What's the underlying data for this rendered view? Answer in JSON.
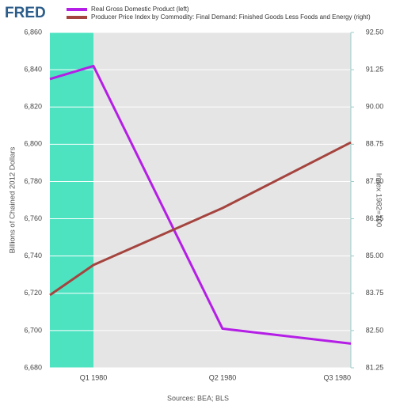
{
  "logo": "FRED",
  "chart_data": {
    "type": "line",
    "categories": [
      null,
      "Q1 1980",
      "Q2 1980",
      "Q3 1980"
    ],
    "series": [
      {
        "name": "Real Gross Domestic Product (left)",
        "color": "#b41ee6",
        "values": [
          6835,
          6842,
          6701,
          6693
        ]
      },
      {
        "name": "Producer Price Index by Commodity: Final Demand: Finished Goods Less Foods and Energy (right)",
        "color": "#a5443f",
        "axis": "y2",
        "values": [
          83.69,
          84.7,
          86.61,
          88.81
        ]
      }
    ],
    "ylabel": "Billions of Chained 2012 Dollars",
    "y2label": "Index 1982=100",
    "ylim": [
      6680,
      6860
    ],
    "yticks": [
      {
        "value": 6680,
        "label": "6,680"
      },
      {
        "value": 6700,
        "label": "6,700"
      },
      {
        "value": 6720,
        "label": "6,720"
      },
      {
        "value": 6740,
        "label": "6,740"
      },
      {
        "value": 6760,
        "label": "6,760"
      },
      {
        "value": 6780,
        "label": "6,780"
      },
      {
        "value": 6800,
        "label": "6,800"
      },
      {
        "value": 6820,
        "label": "6,820"
      },
      {
        "value": 6840,
        "label": "6,840"
      },
      {
        "value": 6860,
        "label": "6,860"
      }
    ],
    "y2lim": [
      81.25,
      92.5
    ],
    "y2ticks": [
      81.25,
      {
        "value": 82.5,
        "label": "82.50"
      },
      83.75,
      {
        "value": 85,
        "label": "85.00"
      },
      86.25,
      {
        "value": 87.5,
        "label": "87.50"
      },
      88.75,
      {
        "value": 90,
        "label": "90.00"
      },
      91.25,
      {
        "value": 92.5,
        "label": "92.50"
      }
    ],
    "grid": true,
    "source": "Sources: BEA; BLS"
  }
}
